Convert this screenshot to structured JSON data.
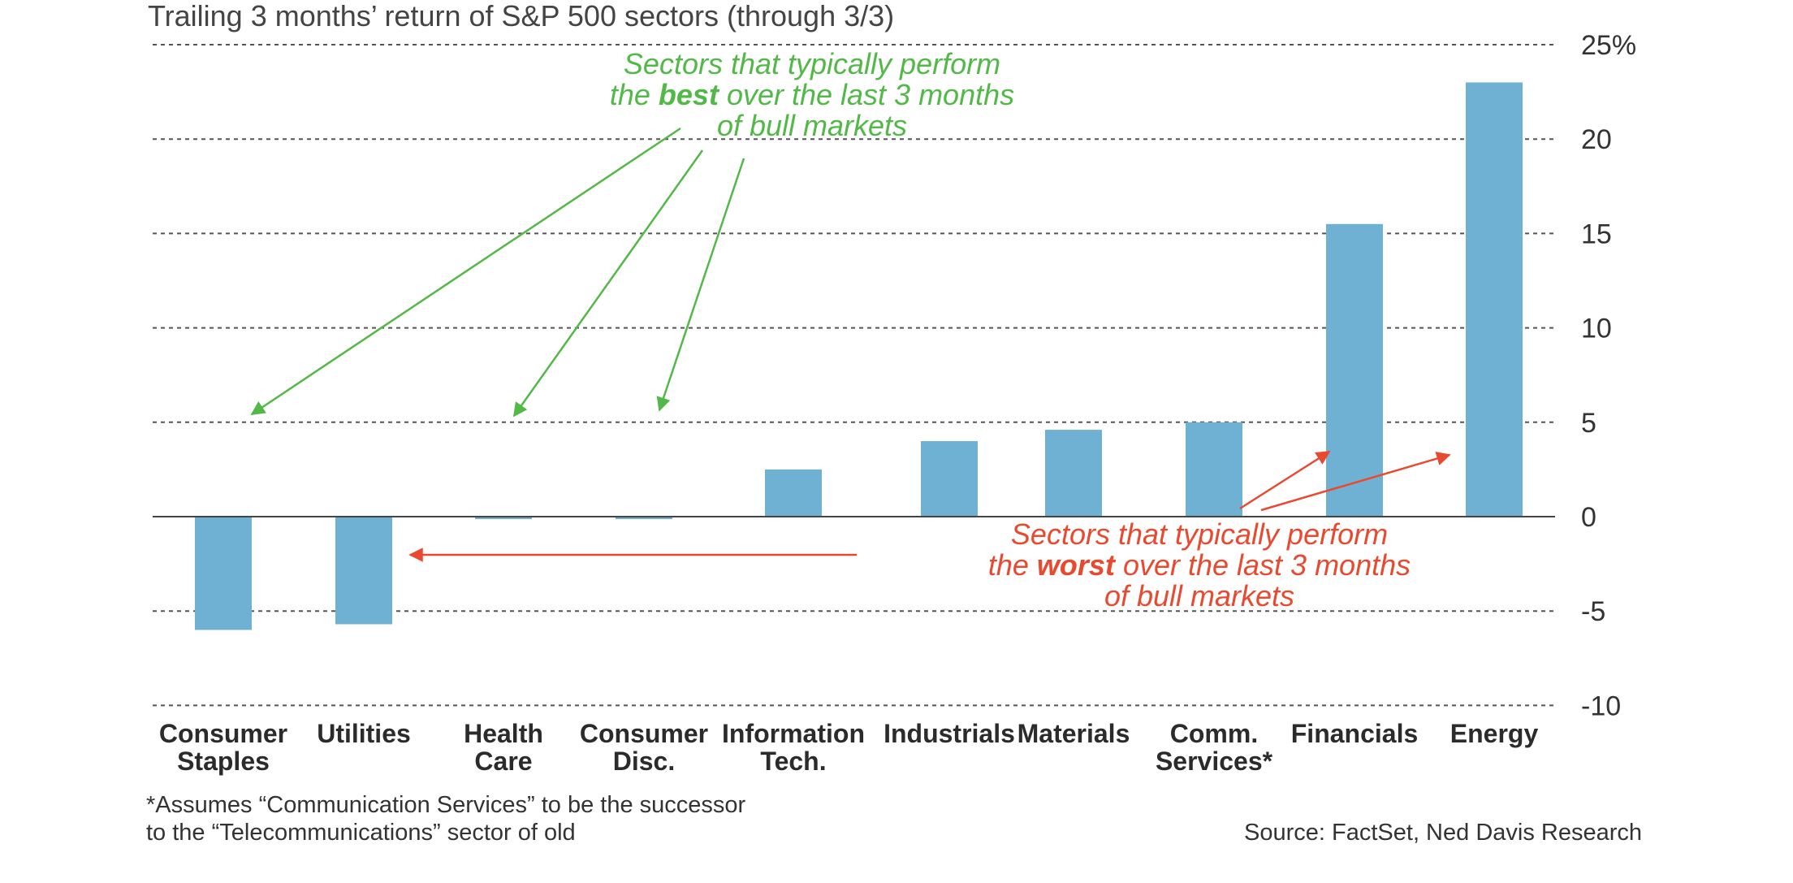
{
  "chart_data": {
    "type": "bar",
    "title": "Trailing 3 months’ return of S&P 500 sectors (through 3/3)",
    "categories": [
      [
        "Consumer",
        "Staples"
      ],
      [
        "Utilities"
      ],
      [
        "Health",
        "Care"
      ],
      [
        "Consumer",
        "Disc."
      ],
      [
        "Information",
        "Tech."
      ],
      [
        "Industrials"
      ],
      [
        "Materials"
      ],
      [
        "Comm.",
        "Services*"
      ],
      [
        "Financials"
      ],
      [
        "Energy"
      ]
    ],
    "values": [
      -6.0,
      -5.7,
      -0.1,
      -0.1,
      2.5,
      4.0,
      4.6,
      5.0,
      15.5,
      23.0
    ],
    "ylim": [
      -10,
      25
    ],
    "yticks": [
      "25%",
      "20",
      "15",
      "10",
      "5",
      "0",
      "-5",
      "-10"
    ],
    "ytick_values": [
      25,
      20,
      15,
      10,
      5,
      0,
      -5,
      -10
    ],
    "grid": true,
    "bar_color": "#6fb1d3",
    "annotations": {
      "best": {
        "lines": [
          [
            "Sectors that typically perform"
          ],
          [
            "the ",
            "best",
            " over the last 3 months"
          ],
          [
            "of bull markets"
          ]
        ],
        "color": "#52b848",
        "target_categories": [
          "Consumer Staples",
          "Health Care",
          "Consumer Disc."
        ]
      },
      "worst": {
        "lines": [
          [
            "Sectors that typically perform"
          ],
          [
            "the ",
            "worst",
            " over the last 3 months"
          ],
          [
            "of bull markets"
          ]
        ],
        "color": "#e8492f",
        "target_categories": [
          "Utilities",
          "Financials",
          "Energy"
        ]
      }
    },
    "footnote": [
      "*Assumes “Communication Services” to be the successor",
      "to the “Telecommunications” sector of old"
    ],
    "source": "Source: FactSet, Ned Davis Research"
  }
}
